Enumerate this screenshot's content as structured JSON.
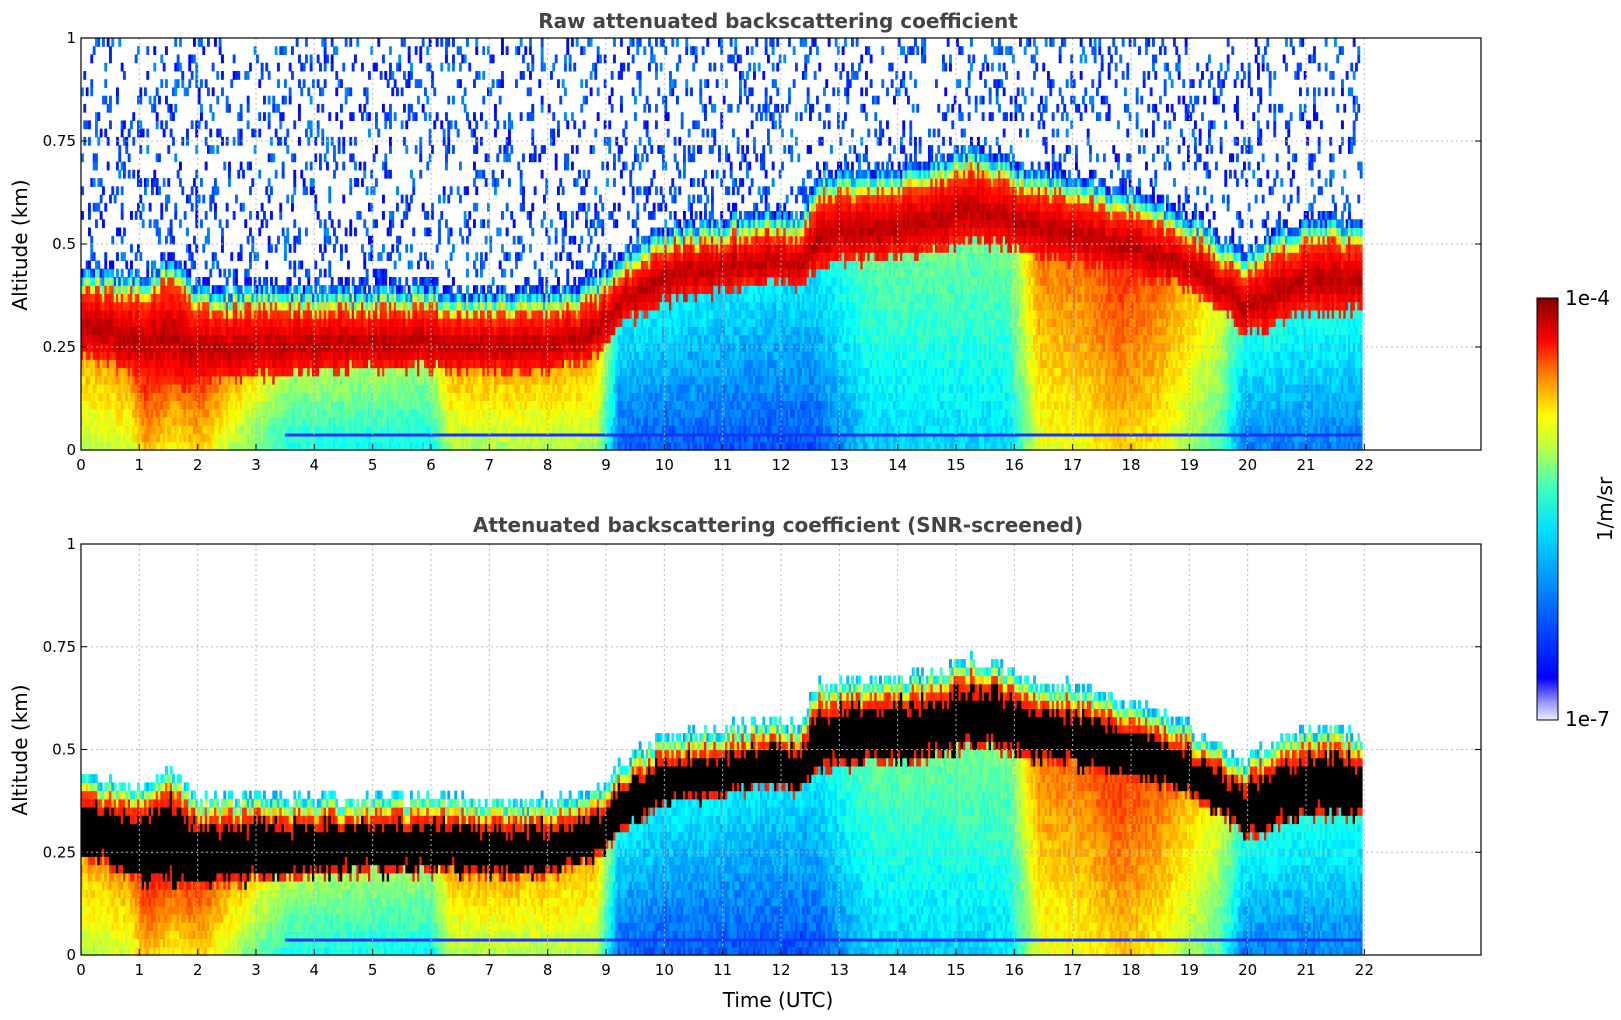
{
  "chart_data": [
    {
      "type": "heatmap",
      "title": "Raw attenuated backscattering coefficient",
      "xlabel": "",
      "ylabel": "Altitude (km)",
      "xlim": [
        0,
        24
      ],
      "ylim": [
        0,
        1
      ],
      "xticks": [
        0,
        1,
        2,
        3,
        4,
        5,
        6,
        7,
        8,
        9,
        10,
        11,
        12,
        13,
        14,
        15,
        16,
        17,
        18,
        19,
        20,
        21,
        22
      ],
      "yticks": [
        0,
        0.25,
        0.5,
        0.75,
        1
      ],
      "ytick_labels": [
        "0",
        "0.25",
        "0.5",
        "0.75",
        "1"
      ],
      "grid": true,
      "data_end_time": 21.95,
      "screened": false,
      "layer": {
        "time": [
          0,
          0.5,
          1,
          1.5,
          2,
          3,
          4,
          5,
          6,
          7,
          8,
          8.8,
          9.3,
          10,
          11,
          11.8,
          12.3,
          12.6,
          13,
          14,
          14.8,
          15.3,
          16,
          16.5,
          17,
          17.5,
          18,
          18.5,
          19,
          19.5,
          19.9,
          20.3,
          20.8,
          21.5,
          21.9
        ],
        "base_km": [
          0.22,
          0.2,
          0.16,
          0.15,
          0.15,
          0.17,
          0.18,
          0.19,
          0.19,
          0.18,
          0.18,
          0.22,
          0.3,
          0.35,
          0.38,
          0.4,
          0.38,
          0.43,
          0.45,
          0.46,
          0.48,
          0.5,
          0.48,
          0.46,
          0.45,
          0.43,
          0.42,
          0.4,
          0.38,
          0.33,
          0.28,
          0.28,
          0.32,
          0.33,
          0.33
        ],
        "top_km": [
          0.38,
          0.37,
          0.36,
          0.4,
          0.33,
          0.33,
          0.33,
          0.33,
          0.33,
          0.32,
          0.32,
          0.35,
          0.42,
          0.48,
          0.5,
          0.52,
          0.5,
          0.6,
          0.61,
          0.62,
          0.65,
          0.67,
          0.63,
          0.61,
          0.6,
          0.58,
          0.56,
          0.54,
          0.5,
          0.46,
          0.42,
          0.45,
          0.49,
          0.5,
          0.48
        ]
      }
    },
    {
      "type": "heatmap",
      "title": "Attenuated backscattering coefficient (SNR-screened)",
      "xlabel": "Time (UTC)",
      "ylabel": "Altitude (km)",
      "xlim": [
        0,
        24
      ],
      "ylim": [
        0,
        1
      ],
      "xticks": [
        0,
        1,
        2,
        3,
        4,
        5,
        6,
        7,
        8,
        9,
        10,
        11,
        12,
        13,
        14,
        15,
        16,
        17,
        18,
        19,
        20,
        21,
        22
      ],
      "yticks": [
        0,
        0.25,
        0.5,
        0.75,
        1
      ],
      "ytick_labels": [
        "0",
        "0.25",
        "0.5",
        "0.75",
        "1"
      ],
      "grid": true,
      "data_end_time": 21.95,
      "screened": true
    }
  ],
  "colorbar": {
    "label": "1/m/sr",
    "min_label": "1e-7",
    "max_label": "1e-4",
    "colormap": "jet",
    "scale": "log",
    "range": [
      1e-07,
      0.0001
    ],
    "saturated_color": "#000000"
  }
}
